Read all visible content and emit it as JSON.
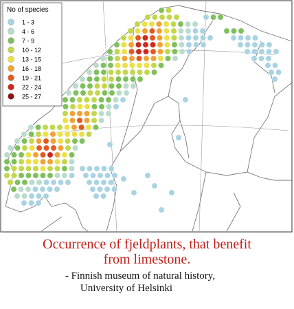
{
  "legend": {
    "title": "No of species",
    "classes": [
      {
        "label": "1 - 3",
        "color": "#a9d3e3"
      },
      {
        "label": "4 - 6",
        "color": "#b9dccc"
      },
      {
        "label": "7 - 9",
        "color": "#7fbf5c"
      },
      {
        "label": "10 - 12",
        "color": "#c3d64c"
      },
      {
        "label": "13 - 15",
        "color": "#ece046"
      },
      {
        "label": "16 - 18",
        "color": "#f0a234"
      },
      {
        "label": "19 - 21",
        "color": "#e25a22"
      },
      {
        "label": "22 - 24",
        "color": "#cc2a1e"
      },
      {
        "label": "25 - 27",
        "color": "#8e1412"
      }
    ]
  },
  "caption": {
    "title_lines": [
      "Occurrence of fjeldplants, that benefit",
      "from limestone."
    ],
    "source_lines": [
      "- Finnish museum of natural history,",
      "University of Helsinki"
    ]
  }
}
